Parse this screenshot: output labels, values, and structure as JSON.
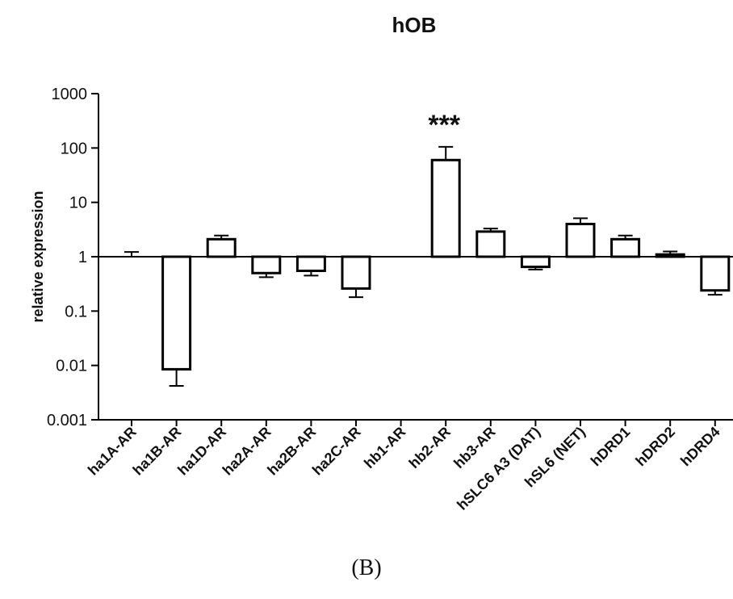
{
  "chart_data": {
    "type": "bar",
    "title": "hOB",
    "xlabel": "",
    "ylabel": "relative expression",
    "yscale": "log",
    "ylim": [
      0.001,
      1000
    ],
    "baseline": 1,
    "yticks": [
      "1000",
      "100",
      "10",
      "1",
      "0.1",
      "0.01",
      "0.001"
    ],
    "ytick_values": [
      1000,
      100,
      10,
      1,
      0.1,
      0.01,
      0.001
    ],
    "categories": [
      "ha1A-AR",
      "ha1B-AR",
      "ha1D-AR",
      "ha2A-AR",
      "ha2B-AR",
      "ha2C-AR",
      "hb1-AR",
      "hb2-AR",
      "hb3-AR",
      "hSLC6 A3 (DAT)",
      "hSL6 (NET)",
      "hDRD1",
      "hDRD2",
      "hDRD4"
    ],
    "values": [
      1.0,
      0.0085,
      2.1,
      0.5,
      0.55,
      0.26,
      1.0,
      60,
      2.9,
      0.65,
      4.0,
      2.1,
      1.1,
      0.24
    ],
    "error": [
      0.22,
      0.0043,
      0.35,
      0.08,
      0.1,
      0.08,
      0.0,
      45,
      0.4,
      0.07,
      1.1,
      0.35,
      0.15,
      0.04
    ],
    "show_bar": [
      false,
      true,
      true,
      true,
      true,
      true,
      false,
      true,
      true,
      true,
      true,
      true,
      true,
      true
    ],
    "bar_color": "#ffffff",
    "edge_color": "#000000",
    "grid": false,
    "legend": "none",
    "annotations": [
      {
        "category": "hb2-AR",
        "text": "***"
      }
    ]
  },
  "panel_label": "(B)"
}
